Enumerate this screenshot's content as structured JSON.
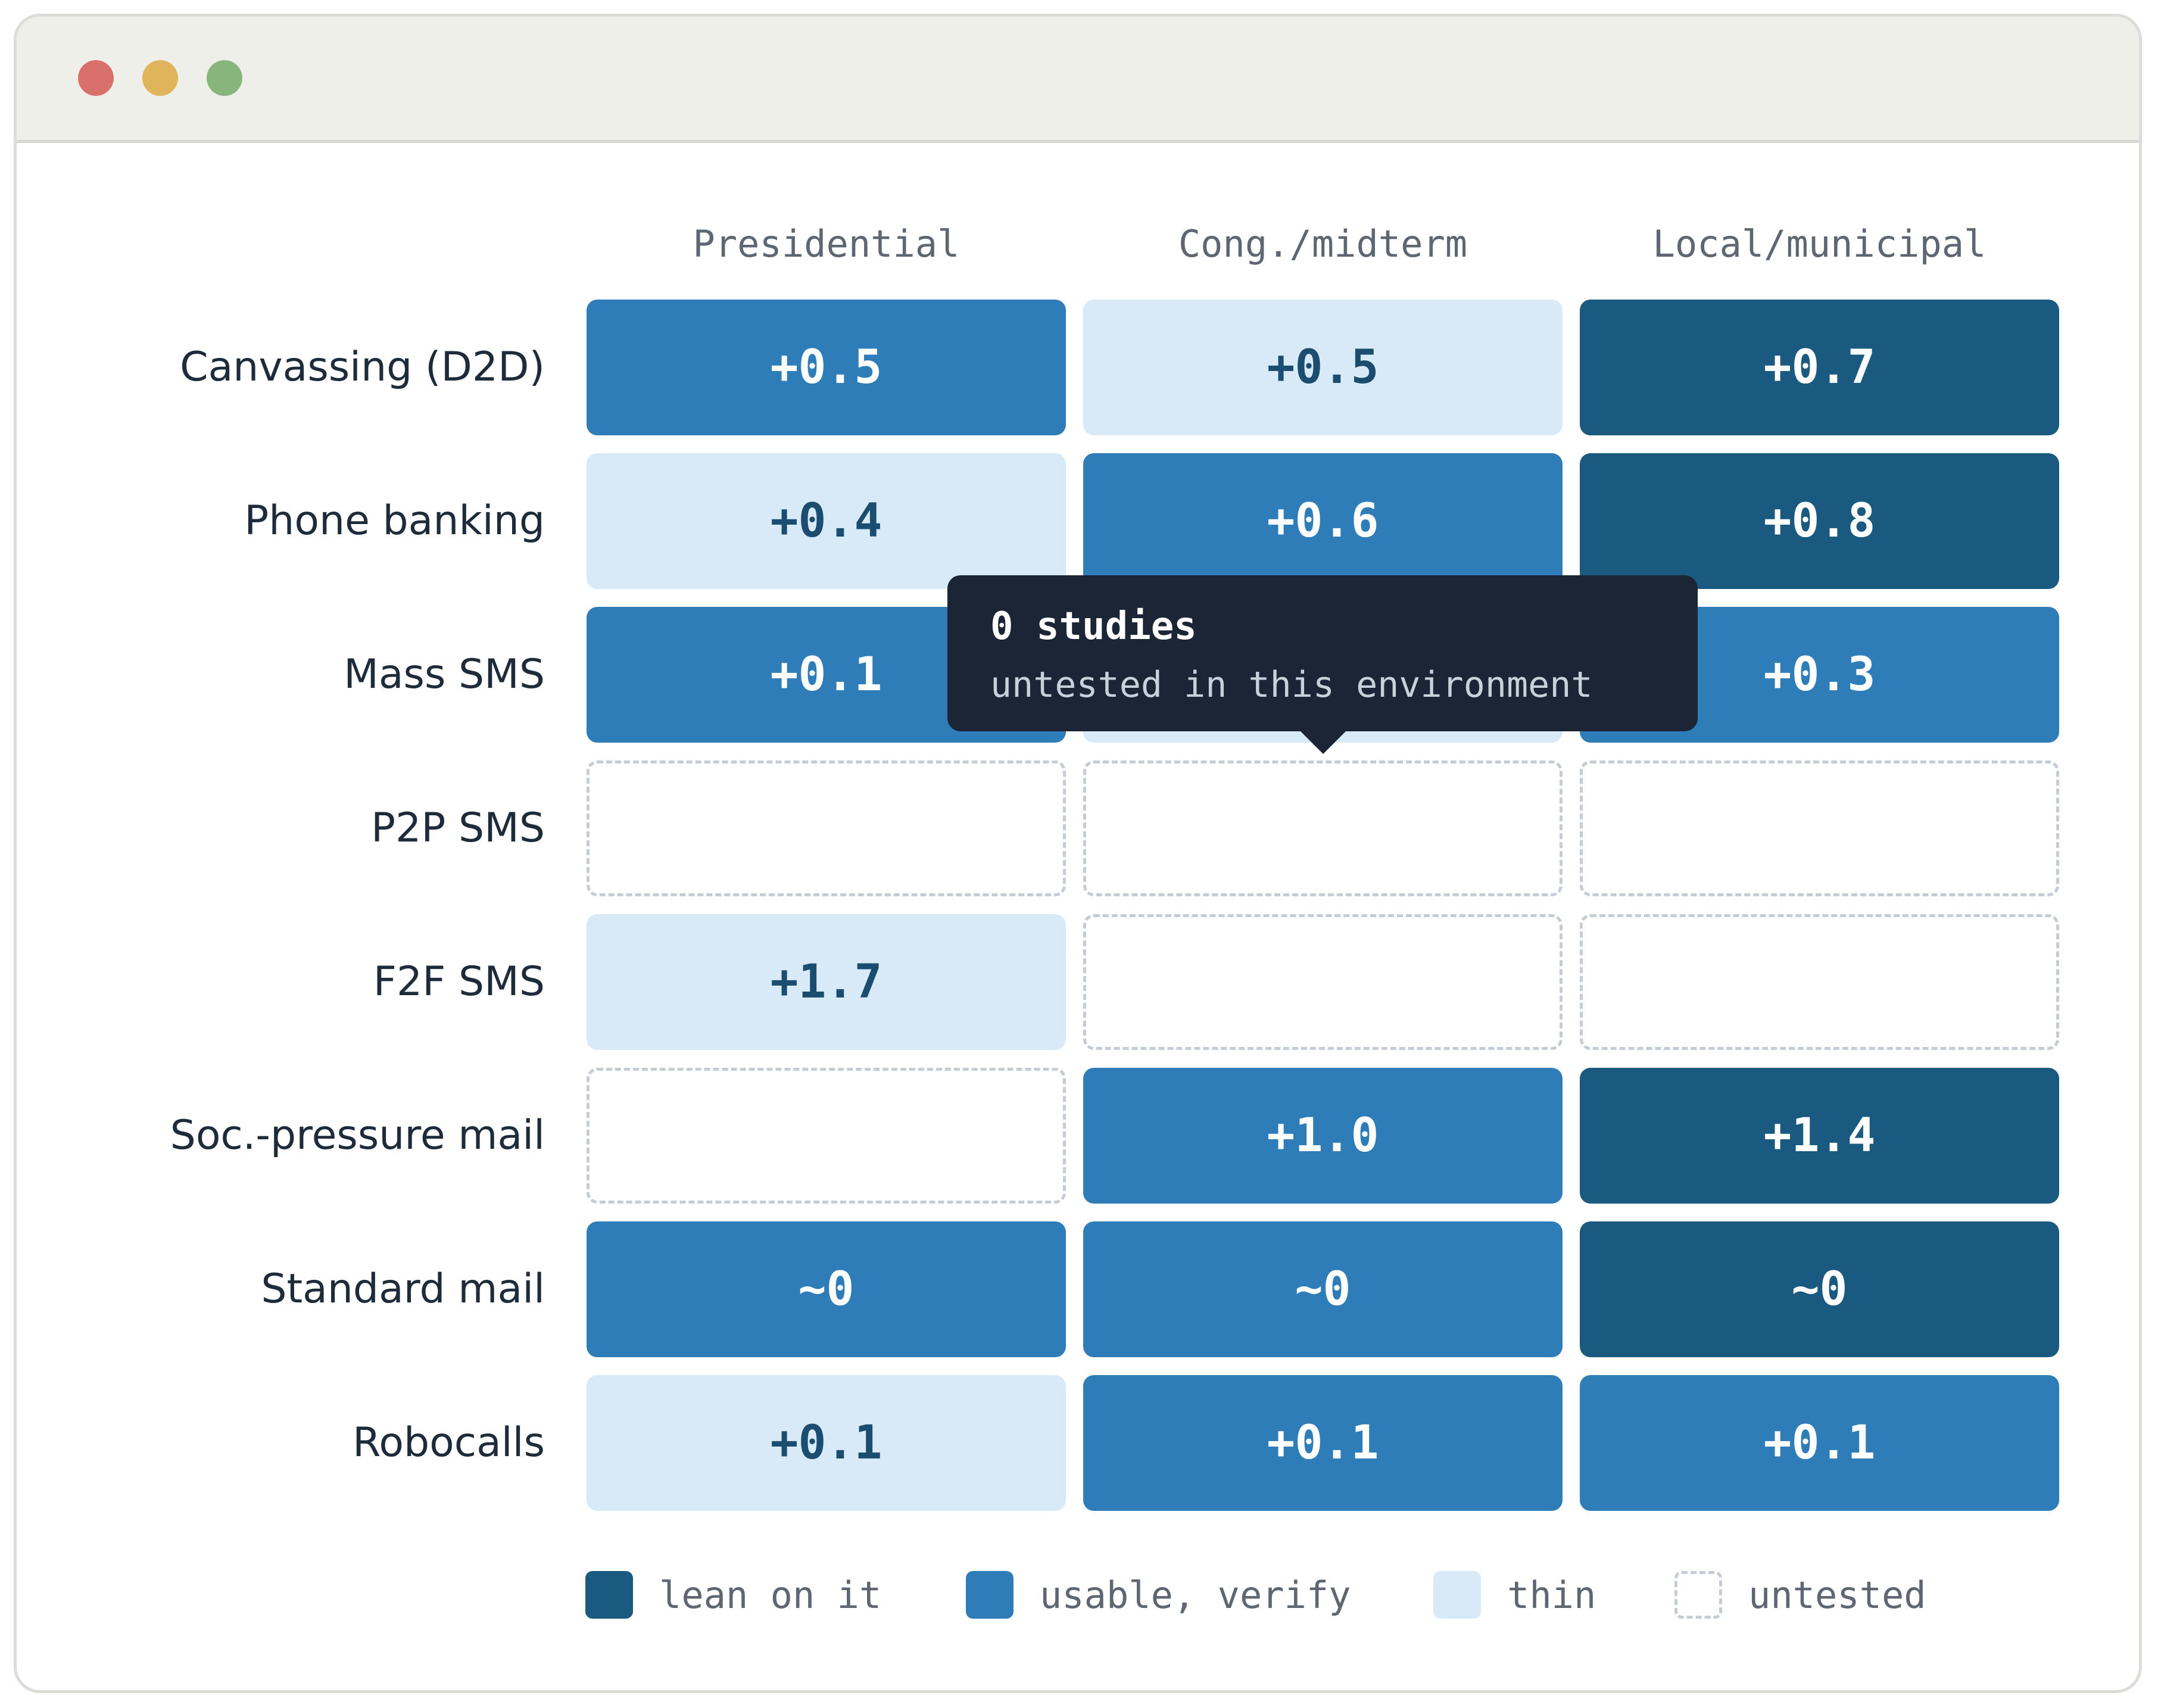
{
  "window": {
    "controls": [
      "close",
      "minimize",
      "maximize"
    ]
  },
  "chart_data": {
    "type": "heatmap",
    "columns": [
      "Presidential",
      "Cong./midterm",
      "Local/municipal"
    ],
    "rows": [
      "Canvassing (D2D)",
      "Phone banking",
      "Mass SMS",
      "P2P SMS",
      "F2F SMS",
      "Soc.-pressure mail",
      "Standard mail",
      "Robocalls"
    ],
    "cells": [
      [
        {
          "label": "+0.5",
          "level": "usable"
        },
        {
          "label": "+0.5",
          "level": "thin"
        },
        {
          "label": "+0.7",
          "level": "lean"
        }
      ],
      [
        {
          "label": "+0.4",
          "level": "thin"
        },
        {
          "label": "+0.6",
          "level": "usable"
        },
        {
          "label": "+0.8",
          "level": "lean"
        }
      ],
      [
        {
          "label": "+0.1",
          "level": "usable"
        },
        {
          "label": "",
          "level": "thin"
        },
        {
          "label": "+0.3",
          "level": "usable"
        }
      ],
      [
        {
          "label": "",
          "level": "untested"
        },
        {
          "label": "",
          "level": "untested"
        },
        {
          "label": "",
          "level": "untested"
        }
      ],
      [
        {
          "label": "+1.7",
          "level": "thin"
        },
        {
          "label": "",
          "level": "untested"
        },
        {
          "label": "",
          "level": "untested"
        }
      ],
      [
        {
          "label": "",
          "level": "untested"
        },
        {
          "label": "+1.0",
          "level": "usable"
        },
        {
          "label": "+1.4",
          "level": "lean"
        }
      ],
      [
        {
          "label": "~0",
          "level": "usable"
        },
        {
          "label": "~0",
          "level": "usable"
        },
        {
          "label": "~0",
          "level": "lean"
        }
      ],
      [
        {
          "label": "+0.1",
          "level": "thin"
        },
        {
          "label": "+0.1",
          "level": "usable"
        },
        {
          "label": "+0.1",
          "level": "usable"
        }
      ]
    ],
    "legend": [
      {
        "label": "lean on it",
        "level": "lean",
        "color": "#1a5a80"
      },
      {
        "label": "usable, verify",
        "level": "usable",
        "color": "#2e7db8"
      },
      {
        "label": "thin",
        "level": "thin",
        "color": "#d8eaf7"
      },
      {
        "label": "untested",
        "level": "untested",
        "color": "#ffffff"
      }
    ],
    "legend_position": "bottom",
    "grid": false
  },
  "tooltip": {
    "title": "0 studies",
    "subtitle": "untested in this environment",
    "target_row": 3,
    "target_col": 1
  }
}
